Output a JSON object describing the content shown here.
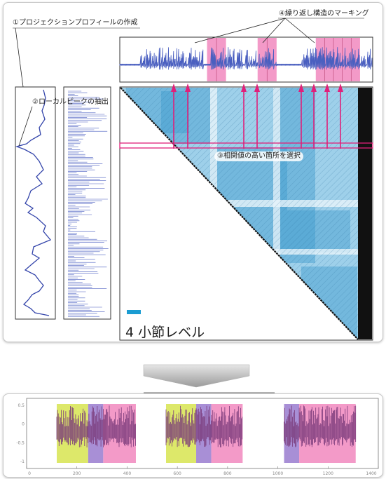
{
  "annotations": {
    "step1": "①プロジェクションプロフィールの作成",
    "step2": "②ローカルピークの抽出",
    "step3": "③相関値の高い箇所を選択",
    "step4": "④繰り返し構造のマーキング"
  },
  "level_label": "4 小節レベル",
  "colors": {
    "matrix_light": "#b9dff0",
    "matrix_dark": "#3d9bcf",
    "magenta": "#e0207a",
    "pink_fill": "#f39ac8",
    "yellow_fill": "#dde86a",
    "purple_fill": "#a88fd6",
    "profile_line": "#3344aa",
    "legend_swatch": "#1b9cd2"
  },
  "top_strip_highlights": [
    {
      "start": 0.345,
      "end": 0.42
    },
    {
      "start": 0.545,
      "end": 0.62
    },
    {
      "start": 0.775,
      "end": 0.95
    }
  ],
  "bottom_chart": {
    "x_ticks": [
      "0",
      "200",
      "400",
      "600",
      "800",
      "1000",
      "1200",
      "1400"
    ],
    "y_ticks": [
      "0.5",
      "0",
      "-0.5",
      "-1"
    ],
    "xlim": [
      0,
      1400
    ],
    "segments": [
      {
        "start": 120,
        "end": 245,
        "color": "yellow"
      },
      {
        "start": 245,
        "end": 305,
        "color": "purple"
      },
      {
        "start": 305,
        "end": 435,
        "color": "pink"
      },
      {
        "start": 555,
        "end": 675,
        "color": "yellow"
      },
      {
        "start": 675,
        "end": 735,
        "color": "purple"
      },
      {
        "start": 735,
        "end": 860,
        "color": "pink"
      },
      {
        "start": 1025,
        "end": 1085,
        "color": "purple"
      },
      {
        "start": 1085,
        "end": 1310,
        "color": "pink"
      }
    ]
  }
}
